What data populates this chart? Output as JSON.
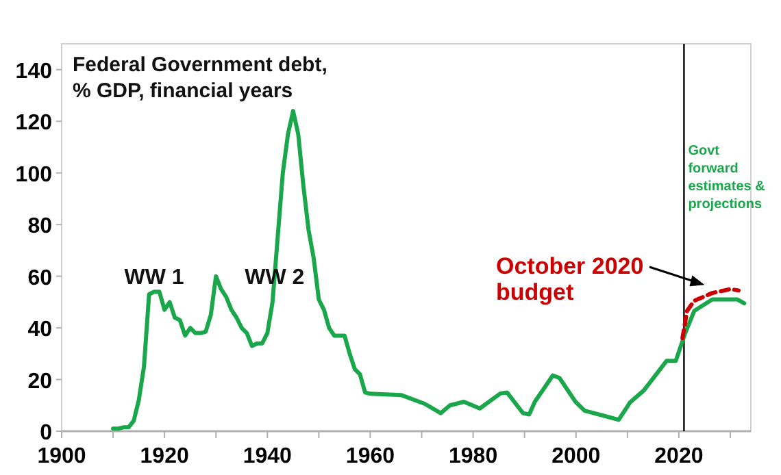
{
  "chart_data": {
    "type": "line",
    "title": "Federal Government debt, % GDP, financial years",
    "xlim": [
      1900,
      2034
    ],
    "ylim": [
      0,
      150
    ],
    "xticks": [
      1900,
      {
        "value": 1910,
        "label": null
      },
      1920,
      {
        "value": 1930,
        "label": null
      },
      1940,
      {
        "value": 1950,
        "label": null
      },
      1960,
      {
        "value": 1970,
        "label": null
      },
      1980,
      {
        "value": 1990,
        "label": null
      },
      2000,
      {
        "value": 2010,
        "label": null
      },
      2020,
      {
        "value": 2030,
        "label": null
      }
    ],
    "yticks": [
      0,
      20,
      40,
      60,
      80,
      100,
      120,
      140
    ],
    "grid": false,
    "marker": "none",
    "series": [
      {
        "color": "#1aa64b",
        "line_style": "solid",
        "x": [
          1910,
          1911,
          1912,
          1913,
          1914,
          1915,
          1916,
          1917,
          1918,
          1919,
          1920,
          1921,
          1922,
          1923,
          1924,
          1925,
          1926,
          1927,
          1928,
          1929,
          1930,
          1931,
          1932,
          1933,
          1934,
          1935,
          1936,
          1937,
          1938,
          1939,
          1940,
          1941,
          1942,
          1943,
          1944,
          1945,
          1946,
          1947,
          1948,
          1949,
          1950,
          1951,
          1952,
          1953,
          1954,
          1955,
          1956,
          1957,
          1958,
          1959,
          1960,
          1966,
          1970.6,
          1973.7,
          1975.5,
          1978.2,
          1981.3,
          1985.3,
          1986.6,
          1989.7,
          1990.9,
          1992,
          1995.5,
          1996.8,
          1999.9,
          2001.7,
          2005.2,
          2008.3,
          2010.5,
          2013.2,
          2017.6,
          2019.4,
          2021.2,
          2023,
          2026.5,
          2031.4,
          2032.7
        ],
        "values": [
          1,
          1,
          1.5,
          1.5,
          4,
          12,
          25,
          53,
          54,
          54,
          47,
          50,
          44,
          43,
          37,
          40,
          38,
          38,
          38.5,
          45,
          60,
          55,
          52,
          47,
          44,
          40,
          38,
          33,
          34,
          34,
          38,
          50,
          75,
          100,
          115,
          124,
          115,
          95,
          78,
          67,
          51,
          47,
          40,
          37,
          37,
          37,
          30,
          24,
          22,
          15,
          14.5,
          14,
          10.6,
          7,
          10,
          11.4,
          8.8,
          14.6,
          15,
          7,
          6.5,
          11.4,
          21.6,
          20.6,
          11.4,
          7.9,
          6.1,
          4.4,
          11.1,
          15.8,
          27.2,
          27.2,
          37.8,
          46.6,
          51,
          51,
          49.5
        ]
      },
      {
        "color": "#cc0000",
        "line_style": "dashed",
        "x": [
          2020.7,
          2021.6,
          2023,
          2026.5,
          2030,
          2031.6
        ],
        "values": [
          36,
          46.6,
          50.5,
          53.5,
          55,
          54.5
        ]
      }
    ],
    "ref_lines": [
      {
        "axis": "x",
        "value": 2021,
        "color": "#000000"
      }
    ],
    "annotations": [
      {
        "text": "WW 1",
        "x": 1918,
        "y": 57
      },
      {
        "text": "WW 2",
        "x": 1943,
        "y": 57
      },
      "Govt forward estimates & projections",
      {
        "text": "October 2020 budget",
        "x": 2025,
        "y": 54
      }
    ]
  }
}
